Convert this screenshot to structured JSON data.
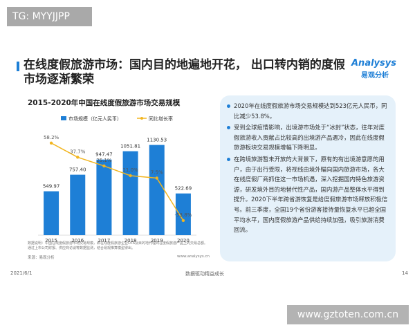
{
  "watermark_top": "TG: MYYJJPP",
  "header": {
    "title": "在线度假旅游市场：国内目的地遍地开花， 出口转内销的度假市场逐渐繁荣",
    "logo": "Analysys",
    "logo_sub": "易观分析"
  },
  "chart_data": {
    "type": "bar",
    "title": "2015-2020年中国在线度假旅游市场交易规模",
    "categories": [
      "2015",
      "2016",
      "2017",
      "2018",
      "2019",
      "2020"
    ],
    "series": [
      {
        "name": "市场规模（亿元人民币）",
        "color": "#1e7fd6",
        "values": [
          549.97,
          757.4,
          947.47,
          1051.81,
          1130.53,
          522.69
        ],
        "value_labels": [
          "549.97",
          "757.40",
          "947.47",
          "1051.81",
          "1130.53",
          "522.69"
        ]
      },
      {
        "name": "同比增长率",
        "type": "line",
        "axis": "y2",
        "color": "#f2b51f",
        "values": [
          58.2,
          37.7,
          25.1,
          11.0,
          7.5,
          -53.8
        ],
        "value_labels": [
          "58.2%",
          "37.7%",
          "25.1%",
          "11.0%",
          "7.5%",
          "-53.8%"
        ]
      }
    ],
    "ylim": [
      0,
      1300
    ],
    "y2lim": [
      -75,
      75
    ],
    "note": "数据说明：中国在线度假旅游市场交易规模，即在线度假旅游企业OTA及目的地代理商在度假旅游产品上的交易总额。通过上市公司财报、供应商访谈等数据监测，结合易观推算模型得出。",
    "source": "来源：易观分析",
    "site": "www.analysys.cn"
  },
  "bullets": [
    "2020年在线度假旅游市场交易规模达到523亿元人民币，同比减少53.8%。",
    "受到全球疫情影响，出境游市场处于“冰封”状态，往年对度假旅游收入贡献占比较高的出境游产品遇冷，因此在线度假旅游板块交易规模增幅下降明显。",
    "在跨境旅游暂未开放的大背景下，原有的有出境游意愿的用户，由于出行受限，将视线由境外瞄向国内旅游市场，各大在线度假厂商抓住这一市场机遇，深入挖掘国内特色旅游资源，研发境外目的地替代性产品，国内游产品整体水平得到提升。2020下半年跨省游恢复是给度假旅游市场释放积极信号。前三季度，全国19个省份游客接待量恢复水平已超全国平均水平，国内度假旅游产品供给持续加强，吸引旅游消费回流。"
  ],
  "footer": {
    "date": "2021/6/1",
    "slogan": "数据驱动精益成长",
    "page": "14"
  },
  "watermark_bottom": "www.gztoten.com.cn"
}
